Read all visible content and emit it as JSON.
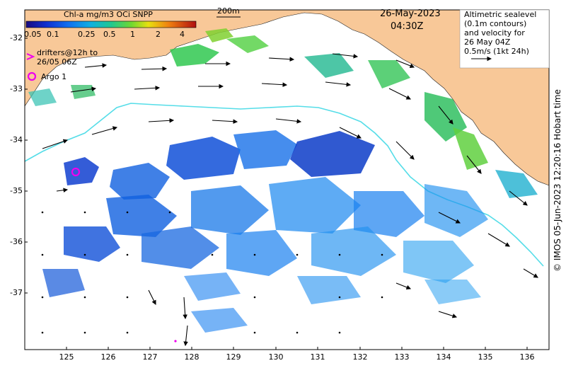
{
  "header": {
    "colorbar_title": "Chl-a mg/m3 OCi SNPP",
    "colorbar_ticks": [
      "0.05",
      "0.1",
      "0.25",
      "0.5",
      "1",
      "2",
      "4"
    ],
    "scale_label": "200m",
    "date": "26-May-2023",
    "time": "04:30Z"
  },
  "legend_box": {
    "lines": [
      "Altimetric sealevel",
      "(0.1m contours)",
      "and velocity for",
      "26 May 04Z",
      "0.5m/s (1kt 24h)"
    ]
  },
  "left_legend": {
    "drifters_line1": "drifters@12h to",
    "drifters_line2": "26/05 06Z",
    "argo": "Argo 1"
  },
  "axes": {
    "y_ticks": [
      "-32",
      "-33",
      "-34",
      "-35",
      "-36",
      "-37"
    ],
    "x_ticks": [
      "125",
      "126",
      "127",
      "128",
      "129",
      "130",
      "131",
      "132",
      "133",
      "134",
      "135",
      "136"
    ]
  },
  "credit": "© IMOS 05-Jun-2023 12:20:16 Hobart time",
  "colors": {
    "land": "#f8c898",
    "ocean": "#ffffff",
    "contour": "#55dde8",
    "argo": "#ee00ee",
    "drifter": "#ee00ee"
  }
}
